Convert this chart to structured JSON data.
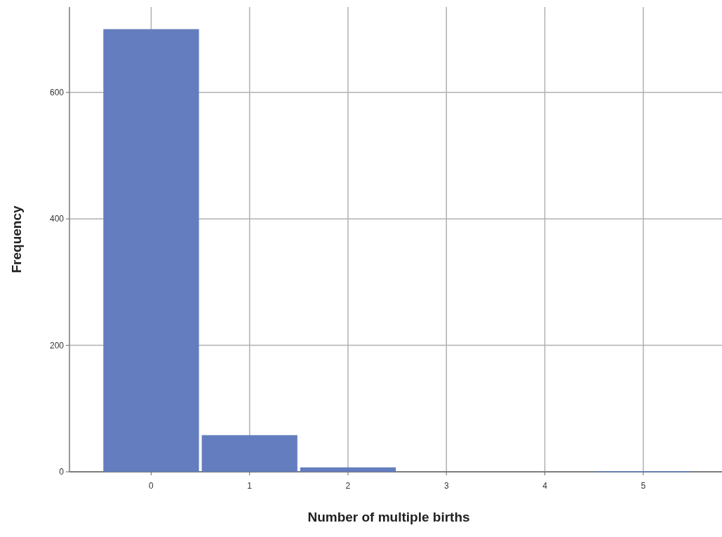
{
  "chart_data": {
    "type": "histogram",
    "xlabel": "Number of multiple births",
    "ylabel": "Frequency",
    "bins": [
      -0.5,
      0.5,
      1.5,
      2.5,
      3.5,
      4.5,
      5.5
    ],
    "values": [
      700,
      58,
      7,
      0,
      0,
      1
    ],
    "color": "#647dbf",
    "xlim": [
      -0.83,
      5.8
    ],
    "xticks": [
      0,
      1,
      2,
      3,
      4,
      5
    ],
    "ylim": [
      0,
      735
    ],
    "yticks": [
      0,
      200,
      400,
      600
    ],
    "grid": true
  }
}
